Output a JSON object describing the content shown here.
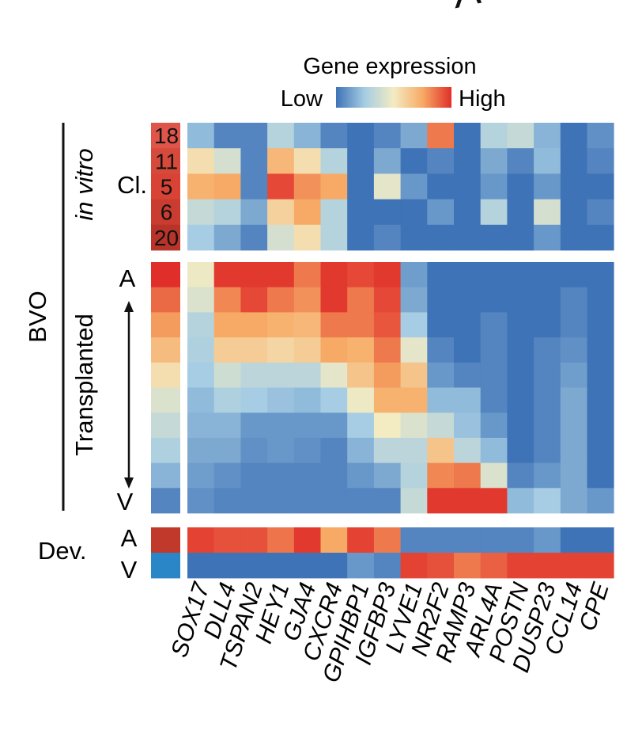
{
  "chart_data": {
    "type": "heatmap",
    "panel_letter": "A",
    "legend": {
      "title": "Gene expression",
      "low_label": "Low",
      "high_label": "High",
      "colors": [
        "#3f73b7",
        "#a6cde3",
        "#f3ebc2",
        "#f7aa65",
        "#e02f2a"
      ]
    },
    "genes": [
      "SOX17",
      "DLL4",
      "TSPAN2",
      "HEY1",
      "GJA4",
      "CXCR4",
      "GPIHBP1",
      "IGFBP3",
      "LYVE1",
      "NR2F2",
      "RAMP3",
      "ARL4A",
      "POSTN",
      "DUSP23",
      "CCL14",
      "CPE"
    ],
    "value_scale": "0 = Low, 1 = High",
    "labels": {
      "bvo": "BVO",
      "in_vitro": "in vitro",
      "transplanted": "Transplanted",
      "clusters": "Cl.",
      "arterial": "A",
      "venous": "V",
      "developmental": "Dev."
    },
    "in_vitro": {
      "clusters": [
        {
          "label": "18",
          "color": "#e0554a",
          "values": [
            0.2,
            0.05,
            0.05,
            0.3,
            0.18,
            0.05,
            0.0,
            0.05,
            0.15,
            0.85,
            0.0,
            0.3,
            0.35,
            0.18,
            0.0,
            0.08
          ]
        },
        {
          "label": "11",
          "color": "#d64a3c",
          "values": [
            0.55,
            0.4,
            0.05,
            0.7,
            0.55,
            0.3,
            0.0,
            0.15,
            0.0,
            0.05,
            0.0,
            0.15,
            0.05,
            0.2,
            0.0,
            0.05
          ]
        },
        {
          "label": "5",
          "color": "#d84336",
          "values": [
            0.72,
            0.75,
            0.05,
            0.95,
            0.8,
            0.75,
            0.0,
            0.45,
            0.1,
            0.0,
            0.0,
            0.1,
            0.0,
            0.1,
            0.0,
            0.0
          ]
        },
        {
          "label": "6",
          "color": "#c93c2f",
          "values": [
            0.35,
            0.3,
            0.15,
            0.6,
            0.75,
            0.3,
            0.0,
            0.0,
            0.0,
            0.1,
            0.0,
            0.3,
            0.0,
            0.4,
            0.0,
            0.05
          ]
        },
        {
          "label": "20",
          "color": "#b83428",
          "values": [
            0.25,
            0.15,
            0.05,
            0.4,
            0.55,
            0.3,
            0.0,
            0.05,
            0.0,
            0.0,
            0.0,
            0.0,
            0.0,
            0.1,
            0.0,
            0.0
          ]
        }
      ]
    },
    "transplanted": {
      "rows": [
        {
          "annotation": 1.0,
          "values": [
            0.48,
            0.98,
            0.98,
            0.98,
            0.85,
            0.98,
            0.95,
            0.98,
            0.12,
            0.0,
            0.0,
            0.0,
            0.0,
            0.0,
            0.0,
            0.0
          ]
        },
        {
          "annotation": 0.88,
          "values": [
            0.42,
            0.82,
            0.95,
            0.85,
            0.8,
            0.98,
            0.85,
            0.95,
            0.15,
            0.0,
            0.0,
            0.0,
            0.0,
            0.0,
            0.05,
            0.0
          ]
        },
        {
          "annotation": 0.78,
          "values": [
            0.3,
            0.75,
            0.75,
            0.72,
            0.7,
            0.85,
            0.85,
            0.92,
            0.25,
            0.0,
            0.0,
            0.05,
            0.0,
            0.0,
            0.05,
            0.0
          ]
        },
        {
          "annotation": 0.68,
          "values": [
            0.28,
            0.62,
            0.62,
            0.58,
            0.62,
            0.75,
            0.72,
            0.85,
            0.45,
            0.05,
            0.0,
            0.05,
            0.0,
            0.05,
            0.08,
            0.0
          ]
        },
        {
          "annotation": 0.55,
          "values": [
            0.25,
            0.38,
            0.32,
            0.32,
            0.32,
            0.45,
            0.65,
            0.78,
            0.65,
            0.1,
            0.05,
            0.05,
            0.0,
            0.05,
            0.12,
            0.0
          ]
        },
        {
          "annotation": 0.42,
          "values": [
            0.2,
            0.28,
            0.25,
            0.22,
            0.2,
            0.25,
            0.48,
            0.72,
            0.72,
            0.2,
            0.2,
            0.05,
            0.0,
            0.05,
            0.15,
            0.0
          ]
        },
        {
          "annotation": 0.35,
          "values": [
            0.18,
            0.18,
            0.1,
            0.1,
            0.1,
            0.1,
            0.25,
            0.5,
            0.42,
            0.35,
            0.22,
            0.1,
            0.0,
            0.05,
            0.15,
            0.0
          ]
        },
        {
          "annotation": 0.28,
          "values": [
            0.15,
            0.15,
            0.08,
            0.1,
            0.08,
            0.05,
            0.18,
            0.32,
            0.32,
            0.65,
            0.32,
            0.2,
            0.0,
            0.05,
            0.15,
            0.0
          ]
        },
        {
          "annotation": 0.18,
          "values": [
            0.12,
            0.08,
            0.05,
            0.05,
            0.05,
            0.05,
            0.1,
            0.15,
            0.3,
            0.82,
            0.85,
            0.42,
            0.05,
            0.1,
            0.15,
            0.0
          ]
        },
        {
          "annotation": 0.05,
          "values": [
            0.08,
            0.05,
            0.05,
            0.05,
            0.05,
            0.05,
            0.05,
            0.05,
            0.35,
            0.98,
            0.98,
            0.98,
            0.2,
            0.25,
            0.15,
            0.1
          ]
        }
      ]
    },
    "developmental": {
      "rows": [
        {
          "label": "A",
          "color": "#c0392b",
          "values": [
            0.96,
            0.93,
            0.93,
            0.86,
            0.98,
            0.75,
            0.96,
            0.85,
            0.05,
            0.05,
            0.05,
            0.05,
            0.05,
            0.1,
            0.0,
            0.0
          ]
        },
        {
          "label": "V",
          "color": "#2a86c6",
          "values": [
            0.0,
            0.0,
            0.0,
            0.0,
            0.0,
            0.0,
            0.1,
            0.05,
            0.96,
            0.93,
            0.85,
            0.9,
            0.96,
            0.96,
            0.96,
            0.96
          ]
        }
      ]
    }
  }
}
